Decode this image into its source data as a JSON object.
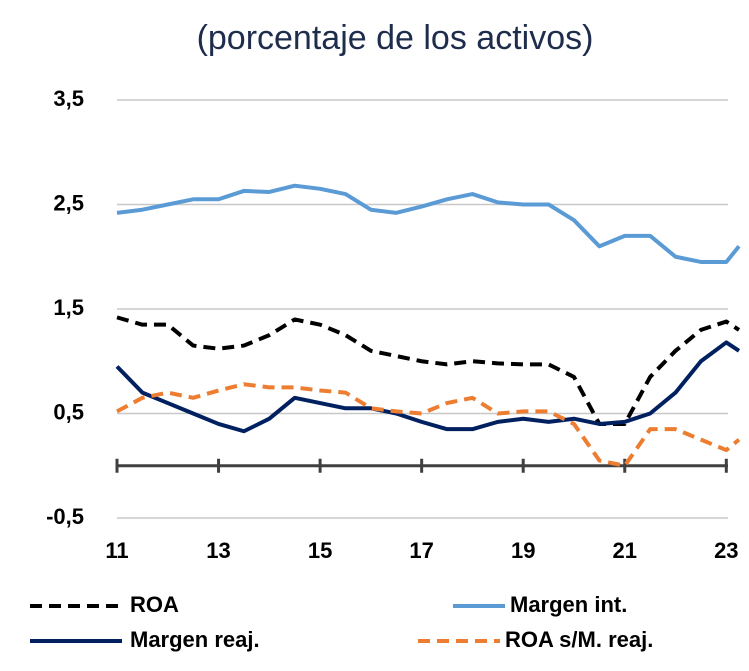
{
  "chart_data": {
    "type": "line",
    "title": "(porcentaje de los activos)",
    "x": [
      11,
      11.5,
      12,
      12.5,
      13,
      13.5,
      14,
      14.5,
      15,
      15.5,
      16,
      16.5,
      17,
      17.5,
      18,
      18.5,
      19,
      19.5,
      20,
      20.5,
      21,
      21.5,
      22,
      22.5,
      23,
      23.25
    ],
    "series": [
      {
        "name": "ROA",
        "color": "#000000",
        "dashed": true,
        "values": [
          1.42,
          1.35,
          1.35,
          1.15,
          1.12,
          1.15,
          1.25,
          1.4,
          1.35,
          1.25,
          1.1,
          1.05,
          1.0,
          0.97,
          1.0,
          0.98,
          0.97,
          0.97,
          0.85,
          0.4,
          0.4,
          0.85,
          1.1,
          1.3,
          1.38,
          1.3
        ]
      },
      {
        "name": "Margen int.",
        "color": "#5b9bd5",
        "dashed": false,
        "values": [
          2.42,
          2.45,
          2.5,
          2.55,
          2.55,
          2.63,
          2.62,
          2.68,
          2.65,
          2.6,
          2.45,
          2.42,
          2.48,
          2.55,
          2.6,
          2.52,
          2.5,
          2.5,
          2.35,
          2.1,
          2.2,
          2.2,
          2.0,
          1.95,
          1.95,
          2.1
        ]
      },
      {
        "name": "Margen reaj.",
        "color": "#002060",
        "dashed": false,
        "values": [
          0.95,
          0.7,
          0.6,
          0.5,
          0.4,
          0.33,
          0.45,
          0.65,
          0.6,
          0.55,
          0.55,
          0.5,
          0.42,
          0.35,
          0.35,
          0.42,
          0.45,
          0.42,
          0.45,
          0.4,
          0.42,
          0.5,
          0.7,
          1.0,
          1.18,
          1.1
        ]
      },
      {
        "name": "ROA s/M. reaj.",
        "color": "#ed7d31",
        "dashed": true,
        "values": [
          0.52,
          0.65,
          0.7,
          0.65,
          0.72,
          0.78,
          0.75,
          0.75,
          0.72,
          0.7,
          0.55,
          0.52,
          0.5,
          0.6,
          0.65,
          0.5,
          0.52,
          0.52,
          0.4,
          0.05,
          0.0,
          0.35,
          0.35,
          0.25,
          0.15,
          0.25
        ]
      }
    ],
    "xlim": [
      11,
      23.25
    ],
    "xticks": [
      11,
      13,
      15,
      17,
      19,
      21,
      23
    ],
    "ylim": [
      -0.5,
      3.5
    ],
    "yticks": [
      {
        "value": 3.5,
        "label": "3,5"
      },
      {
        "value": 2.5,
        "label": "2,5"
      },
      {
        "value": 1.5,
        "label": "1,5"
      },
      {
        "value": 0.5,
        "label": "0,5"
      },
      {
        "value": -0.5,
        "label": "-0,5"
      }
    ],
    "grid": true
  }
}
